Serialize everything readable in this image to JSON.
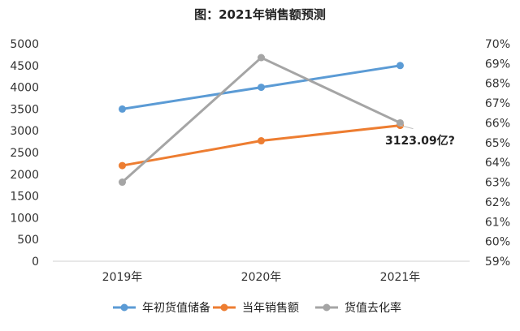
{
  "chart_data": {
    "type": "line",
    "title": "图：2021年销售额预测",
    "categories": [
      "2019年",
      "2020年",
      "2021年"
    ],
    "series": [
      {
        "name": "年初货值储备",
        "axis": "left",
        "color": "#5B9BD5",
        "values": [
          3500,
          4000,
          4500
        ]
      },
      {
        "name": "当年销售额",
        "axis": "left",
        "color": "#ED7D31",
        "values": [
          2200,
          2770,
          3123.09
        ]
      },
      {
        "name": "货值去化率",
        "axis": "right",
        "color": "#A5A5A5",
        "values": [
          63.0,
          69.3,
          66.0
        ]
      }
    ],
    "y_left": {
      "min": 0,
      "max": 5000,
      "step": 500
    },
    "y_right": {
      "min": 59,
      "max": 70,
      "step": 1,
      "unit": "%"
    },
    "y_left_ticks": [
      "0",
      "500",
      "1000",
      "1500",
      "2000",
      "2500",
      "3000",
      "3500",
      "4000",
      "4500",
      "5000"
    ],
    "y_right_ticks": [
      "59%",
      "60%",
      "61%",
      "62%",
      "63%",
      "64%",
      "65%",
      "66%",
      "67%",
      "68%",
      "69%",
      "70%"
    ],
    "annotation": {
      "text": "3123.09亿?",
      "series": "当年销售额",
      "category": "2021年"
    },
    "legend_position": "bottom",
    "grid": false
  }
}
